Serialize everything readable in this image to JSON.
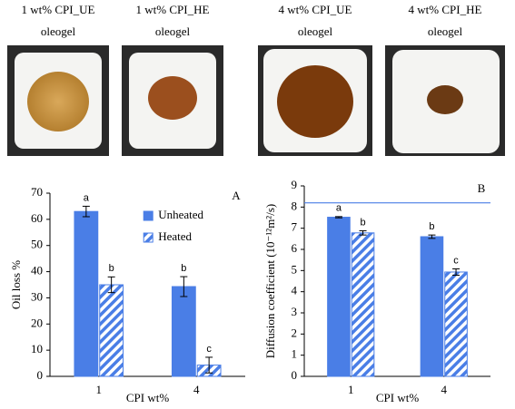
{
  "photos": [
    {
      "caption": [
        "1 wt% CPI_UE",
        "oleogel"
      ]
    },
    {
      "caption": [
        "1 wt% CPI_HE",
        "oleogel"
      ]
    },
    {
      "caption": [
        "4 wt% CPI_UE",
        "oleogel"
      ]
    },
    {
      "caption": [
        "4 wt% CPI_HE",
        "oleogel"
      ]
    }
  ],
  "chart_data": [
    {
      "type": "bar",
      "panel": "A",
      "ylabel": "Oil loss %",
      "xlabel": "CPI wt%",
      "categories": [
        "1",
        "4"
      ],
      "series": [
        {
          "name": "Unheated",
          "color": "#4a7ee6",
          "hatch": false,
          "values": [
            63,
            34.3
          ],
          "errors": [
            2,
            3.8
          ],
          "significance": [
            "a",
            "b"
          ]
        },
        {
          "name": "Heated",
          "color": "#4a7ee6",
          "hatch": true,
          "values": [
            35,
            4.3
          ],
          "errors": [
            3,
            3
          ],
          "significance": [
            "b",
            "c"
          ]
        }
      ],
      "ylim": [
        0,
        70
      ],
      "yticks": [
        0,
        10,
        20,
        30,
        40,
        50,
        60,
        70
      ],
      "legend": "upper right"
    },
    {
      "type": "bar",
      "panel": "B",
      "ylabel": "Diffusion coefficient (10⁻¹²m²/s)",
      "xlabel": "CPI wt%",
      "categories": [
        "1",
        "4"
      ],
      "series": [
        {
          "color": "#4a7ee6",
          "hatch": false,
          "values": [
            7.52,
            6.6
          ],
          "errors": [
            0.03,
            0.08
          ],
          "significance": [
            "a",
            "b"
          ]
        },
        {
          "color": "#4a7ee6",
          "hatch": true,
          "values": [
            6.78,
            4.93
          ],
          "errors": [
            0.1,
            0.15
          ],
          "significance": [
            "b",
            "c"
          ]
        }
      ],
      "ylim": [
        0,
        9
      ],
      "yticks": [
        0,
        1,
        2,
        3,
        4,
        5,
        6,
        7,
        8,
        9
      ],
      "reference_line": 8.2
    }
  ]
}
